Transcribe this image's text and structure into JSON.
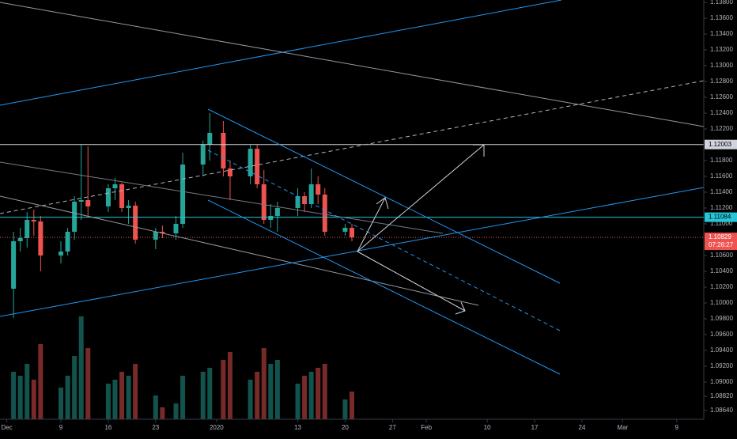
{
  "chart_data": {
    "type": "candlestick",
    "x": [
      "2019-12-02",
      "2019-12-03",
      "2019-12-04",
      "2019-12-05",
      "2019-12-06",
      "2019-12-09",
      "2019-12-10",
      "2019-12-11",
      "2019-12-12",
      "2019-12-13",
      "2019-12-16",
      "2019-12-17",
      "2019-12-18",
      "2019-12-19",
      "2019-12-20",
      "2019-12-23",
      "2019-12-24",
      "2019-12-26",
      "2019-12-27",
      "2019-12-30",
      "2019-12-31",
      "2020-01-02",
      "2020-01-03",
      "2020-01-06",
      "2020-01-07",
      "2020-01-08",
      "2020-01-09",
      "2020-01-10",
      "2020-01-13",
      "2020-01-14",
      "2020-01-15",
      "2020-01-16",
      "2020-01-17",
      "2020-01-20",
      "2020-01-21"
    ],
    "open": [
      1.1018,
      1.1078,
      1.1082,
      1.1105,
      1.1103,
      1.106,
      1.1065,
      1.109,
      1.1128,
      1.113,
      1.1122,
      1.1145,
      1.115,
      1.112,
      1.1123,
      1.108,
      1.109,
      1.1088,
      1.11,
      1.1175,
      1.12,
      1.1215,
      1.117,
      1.116,
      1.1195,
      1.115,
      1.1105,
      1.111,
      1.112,
      1.1135,
      1.1125,
      1.115,
      1.1137,
      1.109,
      1.1095
    ],
    "high": [
      1.109,
      1.1095,
      1.1115,
      1.1118,
      1.111,
      1.1078,
      1.1095,
      1.1135,
      1.12,
      1.1198,
      1.115,
      1.1158,
      1.1152,
      1.113,
      1.1128,
      1.1095,
      1.1098,
      1.111,
      1.119,
      1.1205,
      1.124,
      1.123,
      1.118,
      1.12,
      1.12,
      1.1168,
      1.1125,
      1.1128,
      1.1145,
      1.114,
      1.117,
      1.116,
      1.1145,
      1.11,
      1.11
    ],
    "low": [
      1.0981,
      1.1065,
      1.107,
      1.1085,
      1.104,
      1.105,
      1.106,
      1.108,
      1.1105,
      1.111,
      1.1115,
      1.113,
      1.1115,
      1.11,
      1.1075,
      1.1068,
      1.1082,
      1.108,
      1.1095,
      1.116,
      1.118,
      1.116,
      1.113,
      1.115,
      1.1145,
      1.11,
      1.1095,
      1.109,
      1.111,
      1.1115,
      1.112,
      1.1125,
      1.1085,
      1.1085,
      1.1078
    ],
    "close": [
      1.1078,
      1.1082,
      1.1105,
      1.1103,
      1.106,
      1.1065,
      1.109,
      1.1128,
      1.113,
      1.1122,
      1.1145,
      1.115,
      1.112,
      1.1123,
      1.108,
      1.109,
      1.1088,
      1.11,
      1.1175,
      1.12,
      1.1215,
      1.117,
      1.116,
      1.1195,
      1.115,
      1.1105,
      1.111,
      1.112,
      1.1135,
      1.1125,
      1.115,
      1.1137,
      1.109,
      1.1095,
      1.1083
    ],
    "volume": [
      60,
      55,
      70,
      50,
      95,
      40,
      55,
      80,
      130,
      90,
      45,
      50,
      60,
      55,
      70,
      30,
      15,
      20,
      55,
      60,
      65,
      75,
      85,
      50,
      60,
      90,
      70,
      75,
      45,
      55,
      60,
      65,
      70,
      25,
      35
    ],
    "up_color": "#26a69a",
    "down_color": "#ef5350",
    "xlim": [
      "2019-11-30",
      "2020-03-13"
    ],
    "xticks": [
      {
        "value": "2019-12-01",
        "label": "Dec"
      },
      {
        "value": "2019-12-09",
        "label": "9"
      },
      {
        "value": "2019-12-16",
        "label": "16"
      },
      {
        "value": "2019-12-23",
        "label": "23"
      },
      {
        "value": "2020-01-01",
        "label": "2020"
      },
      {
        "value": "2020-01-13",
        "label": "13"
      },
      {
        "value": "2020-01-20",
        "label": "20"
      },
      {
        "value": "2020-01-27",
        "label": "27"
      },
      {
        "value": "2020-02-01",
        "label": "Feb"
      },
      {
        "value": "2020-02-10",
        "label": "10"
      },
      {
        "value": "2020-02-17",
        "label": "17"
      },
      {
        "value": "2020-02-24",
        "label": "24"
      },
      {
        "value": "2020-03-01",
        "label": "Mar"
      },
      {
        "value": "2020-03-09",
        "label": "9"
      }
    ],
    "ylim": [
      1.0853,
      1.1383
    ],
    "yticks": [
      {
        "value": 1.138,
        "label": "1.13800"
      },
      {
        "value": 1.136,
        "label": "1.13600"
      },
      {
        "value": 1.134,
        "label": "1.13400"
      },
      {
        "value": 1.132,
        "label": "1.13200"
      },
      {
        "value": 1.13,
        "label": "1.13000"
      },
      {
        "value": 1.128,
        "label": "1.12800"
      },
      {
        "value": 1.126,
        "label": "1.12600"
      },
      {
        "value": 1.124,
        "label": "1.12400"
      },
      {
        "value": 1.122,
        "label": "1.12200"
      },
      {
        "value": 1.118,
        "label": "1.11800"
      },
      {
        "value": 1.116,
        "label": "1.11600"
      },
      {
        "value": 1.114,
        "label": "1.11400"
      },
      {
        "value": 1.112,
        "label": "1.11200"
      },
      {
        "value": 1.11,
        "label": "1.11000"
      },
      {
        "value": 1.106,
        "label": "1.10600"
      },
      {
        "value": 1.104,
        "label": "1.10400"
      },
      {
        "value": 1.102,
        "label": "1.10200"
      },
      {
        "value": 1.1,
        "label": "1.10000"
      },
      {
        "value": 1.098,
        "label": "1.09800"
      },
      {
        "value": 1.096,
        "label": "1.09600"
      },
      {
        "value": 1.094,
        "label": "1.09400"
      },
      {
        "value": 1.092,
        "label": "1.09200"
      },
      {
        "value": 1.09,
        "label": "1.09000"
      },
      {
        "value": 1.0882,
        "label": "1.08820"
      },
      {
        "value": 1.0864,
        "label": "1.08640"
      }
    ],
    "price_lines": [
      {
        "value": 1.12003,
        "label": "1.12003",
        "color": "#d1d4dc"
      },
      {
        "value": 1.11084,
        "label": "1.11084",
        "color": "#26c6da"
      }
    ],
    "last_price": {
      "value": 1.10829,
      "label": "1.10829",
      "countdown": "07:26:27",
      "color": "#ef5350"
    }
  }
}
